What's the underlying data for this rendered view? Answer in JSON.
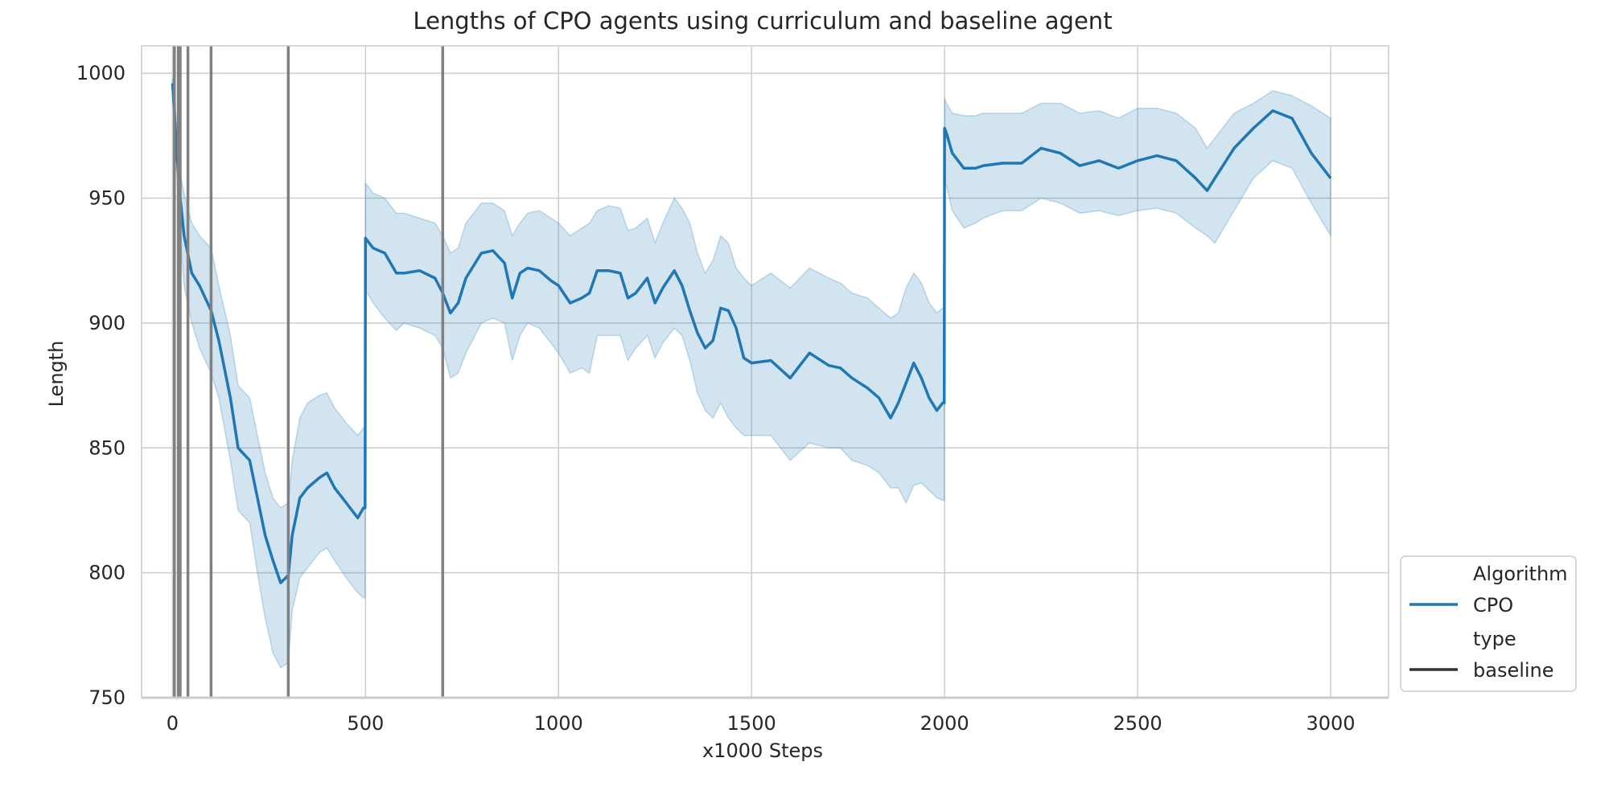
{
  "chart_data": {
    "type": "line",
    "title": "Lengths of CPO agents using curriculum and baseline agent",
    "xlabel": "x1000 Steps",
    "ylabel": "Length",
    "xlim": [
      -80,
      3150
    ],
    "ylim": [
      750,
      1011
    ],
    "xticks": [
      0,
      500,
      1000,
      1500,
      2000,
      2500,
      3000
    ],
    "yticks": [
      750,
      800,
      850,
      900,
      950,
      1000
    ],
    "grid": true,
    "legend_position": "outside-lower-right",
    "legend": {
      "title_1": "Algorithm",
      "entry_1": "CPO",
      "title_2": "type",
      "entry_2": "baseline"
    },
    "colors": {
      "line": "#1f77b4",
      "band": "#1f77b4",
      "vlines": "#808080",
      "grid": "#cccccc",
      "baseline_legend": "#333333"
    },
    "vertical_lines_x": [
      5,
      15,
      20,
      40,
      100,
      300,
      700
    ],
    "series": [
      {
        "name": "CPO",
        "x": [
          0,
          5,
          10,
          20,
          30,
          50,
          70,
          100,
          120,
          150,
          170,
          200,
          220,
          240,
          260,
          280,
          300,
          310,
          330,
          350,
          380,
          400,
          420,
          450,
          480,
          495,
          499,
          500,
          505,
          520,
          550,
          580,
          600,
          640,
          680,
          700,
          720,
          740,
          760,
          800,
          830,
          860,
          880,
          900,
          920,
          950,
          980,
          1000,
          1030,
          1060,
          1080,
          1100,
          1130,
          1160,
          1180,
          1200,
          1230,
          1250,
          1270,
          1300,
          1320,
          1340,
          1360,
          1380,
          1400,
          1420,
          1440,
          1460,
          1480,
          1500,
          1550,
          1600,
          1650,
          1700,
          1730,
          1760,
          1800,
          1830,
          1860,
          1880,
          1900,
          1920,
          1940,
          1960,
          1980,
          1995,
          1999,
          2000,
          2005,
          2020,
          2050,
          2080,
          2100,
          2150,
          2200,
          2250,
          2300,
          2350,
          2400,
          2450,
          2500,
          2550,
          2600,
          2650,
          2680,
          2700,
          2750,
          2800,
          2850,
          2900,
          2950,
          3000
        ],
        "y": [
          996,
          985,
          970,
          950,
          935,
          920,
          915,
          905,
          893,
          870,
          850,
          845,
          830,
          815,
          805,
          796,
          799,
          815,
          830,
          834,
          838,
          840,
          834,
          828,
          822,
          826,
          826,
          934,
          933,
          930,
          928,
          920,
          920,
          921,
          918,
          912,
          904,
          908,
          918,
          928,
          929,
          924,
          910,
          920,
          922,
          921,
          917,
          915,
          908,
          910,
          912,
          921,
          921,
          920,
          910,
          912,
          918,
          908,
          914,
          921,
          915,
          905,
          896,
          890,
          893,
          906,
          905,
          898,
          886,
          884,
          885,
          878,
          888,
          883,
          882,
          878,
          874,
          870,
          862,
          868,
          876,
          884,
          878,
          870,
          865,
          868,
          868,
          978,
          976,
          968,
          962,
          962,
          963,
          964,
          964,
          970,
          968,
          963,
          965,
          962,
          965,
          967,
          965,
          958,
          953,
          958,
          970,
          978,
          985,
          982,
          968,
          958
        ],
        "ci_lower": [
          993,
          982,
          962,
          935,
          915,
          900,
          890,
          880,
          870,
          845,
          825,
          820,
          800,
          782,
          768,
          762,
          764,
          785,
          798,
          802,
          808,
          810,
          805,
          798,
          792,
          790,
          790,
          912,
          912,
          908,
          902,
          897,
          900,
          898,
          895,
          890,
          878,
          880,
          888,
          900,
          902,
          900,
          885,
          895,
          900,
          898,
          892,
          888,
          880,
          882,
          880,
          895,
          895,
          895,
          885,
          890,
          895,
          886,
          892,
          898,
          895,
          885,
          872,
          865,
          862,
          868,
          862,
          858,
          855,
          855,
          855,
          845,
          852,
          850,
          850,
          845,
          843,
          840,
          834,
          834,
          828,
          835,
          836,
          833,
          830,
          829,
          829,
          955,
          955,
          945,
          938,
          940,
          942,
          945,
          945,
          950,
          948,
          944,
          945,
          943,
          945,
          946,
          944,
          938,
          935,
          932,
          945,
          958,
          965,
          962,
          948,
          935
        ],
        "ci_upper": [
          998,
          993,
          980,
          960,
          952,
          940,
          935,
          930,
          915,
          895,
          875,
          870,
          855,
          840,
          830,
          826,
          828,
          845,
          862,
          868,
          871,
          872,
          866,
          860,
          855,
          858,
          858,
          956,
          955,
          952,
          950,
          944,
          944,
          942,
          940,
          935,
          928,
          930,
          940,
          948,
          948,
          945,
          935,
          940,
          944,
          945,
          942,
          940,
          935,
          938,
          940,
          945,
          947,
          946,
          937,
          938,
          942,
          932,
          940,
          950,
          946,
          940,
          928,
          920,
          925,
          935,
          932,
          922,
          918,
          915,
          920,
          914,
          922,
          918,
          916,
          912,
          910,
          906,
          902,
          904,
          914,
          920,
          916,
          908,
          904,
          906,
          906,
          990,
          988,
          984,
          983,
          983,
          984,
          984,
          984,
          988,
          988,
          984,
          985,
          982,
          986,
          986,
          984,
          978,
          970,
          974,
          984,
          988,
          993,
          991,
          987,
          982
        ]
      }
    ]
  }
}
